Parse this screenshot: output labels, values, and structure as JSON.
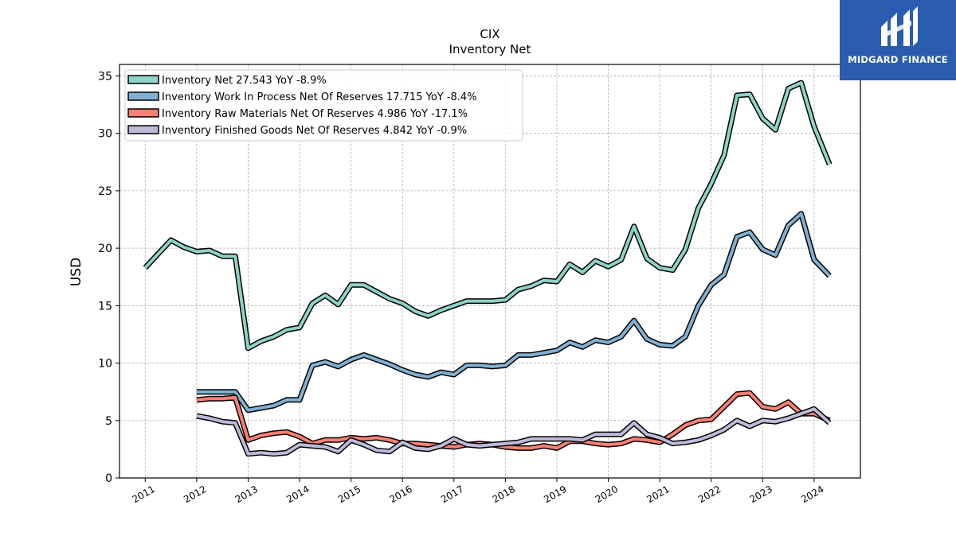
{
  "brand": {
    "name": "MIDGARD FINANCE",
    "bg_color": "#2a5cb0"
  },
  "chart_data": {
    "type": "line",
    "title": "CIX",
    "subtitle": "Inventory Net",
    "xlabel": "",
    "ylabel": "USD",
    "xlim": [
      2010.5,
      2024.9
    ],
    "ylim": [
      0,
      36
    ],
    "x_ticks": [
      "2011",
      "2012",
      "2013",
      "2014",
      "2015",
      "2016",
      "2017",
      "2018",
      "2019",
      "2020",
      "2021",
      "2022",
      "2023",
      "2024"
    ],
    "y_ticks": [
      0,
      5,
      10,
      15,
      20,
      25,
      30,
      35
    ],
    "grid": true,
    "legend_position": "top-left",
    "series": [
      {
        "name": "Inventory Net",
        "legend": "Inventory Net  27.543 YoY -8.9%",
        "color": "#8dd3c7",
        "points": [
          [
            2011.0,
            18.3
          ],
          [
            2011.25,
            19.5
          ],
          [
            2011.5,
            20.7
          ],
          [
            2011.75,
            20.1
          ],
          [
            2012.0,
            19.7
          ],
          [
            2012.25,
            19.8
          ],
          [
            2012.5,
            19.3
          ],
          [
            2012.75,
            19.3
          ],
          [
            2013.0,
            11.3
          ],
          [
            2013.25,
            11.9
          ],
          [
            2013.5,
            12.3
          ],
          [
            2013.75,
            12.9
          ],
          [
            2014.0,
            13.1
          ],
          [
            2014.25,
            15.2
          ],
          [
            2014.5,
            15.9
          ],
          [
            2014.75,
            15.1
          ],
          [
            2015.0,
            16.8
          ],
          [
            2015.25,
            16.8
          ],
          [
            2015.5,
            16.2
          ],
          [
            2015.75,
            15.6
          ],
          [
            2016.0,
            15.2
          ],
          [
            2016.25,
            14.5
          ],
          [
            2016.5,
            14.1
          ],
          [
            2016.75,
            14.6
          ],
          [
            2017.0,
            15.0
          ],
          [
            2017.25,
            15.4
          ],
          [
            2017.5,
            15.4
          ],
          [
            2017.75,
            15.4
          ],
          [
            2018.0,
            15.5
          ],
          [
            2018.25,
            16.4
          ],
          [
            2018.5,
            16.7
          ],
          [
            2018.75,
            17.2
          ],
          [
            2019.0,
            17.1
          ],
          [
            2019.25,
            18.6
          ],
          [
            2019.5,
            17.9
          ],
          [
            2019.75,
            18.9
          ],
          [
            2020.0,
            18.4
          ],
          [
            2020.25,
            19.0
          ],
          [
            2020.5,
            21.9
          ],
          [
            2020.75,
            19.1
          ],
          [
            2021.0,
            18.3
          ],
          [
            2021.25,
            18.1
          ],
          [
            2021.5,
            19.9
          ],
          [
            2021.75,
            23.5
          ],
          [
            2022.0,
            25.6
          ],
          [
            2022.25,
            28.1
          ],
          [
            2022.5,
            33.3
          ],
          [
            2022.75,
            33.4
          ],
          [
            2023.0,
            31.3
          ],
          [
            2023.25,
            30.3
          ],
          [
            2023.5,
            33.9
          ],
          [
            2023.75,
            34.4
          ],
          [
            2024.0,
            30.6
          ],
          [
            2024.3,
            27.3
          ]
        ]
      },
      {
        "name": "Inventory Work In Process Net Of Reserves",
        "legend": "Inventory Work In Process Net Of Reserves  17.715 YoY -8.4%",
        "color": "#80b1d3",
        "points": [
          [
            2012.0,
            7.5
          ],
          [
            2012.25,
            7.5
          ],
          [
            2012.5,
            7.5
          ],
          [
            2012.75,
            7.5
          ],
          [
            2013.0,
            5.9
          ],
          [
            2013.25,
            6.1
          ],
          [
            2013.5,
            6.3
          ],
          [
            2013.75,
            6.8
          ],
          [
            2014.0,
            6.8
          ],
          [
            2014.25,
            9.8
          ],
          [
            2014.5,
            10.1
          ],
          [
            2014.75,
            9.7
          ],
          [
            2015.0,
            10.3
          ],
          [
            2015.25,
            10.7
          ],
          [
            2015.5,
            10.3
          ],
          [
            2015.75,
            9.9
          ],
          [
            2016.0,
            9.4
          ],
          [
            2016.25,
            9.0
          ],
          [
            2016.5,
            8.8
          ],
          [
            2016.75,
            9.2
          ],
          [
            2017.0,
            9.0
          ],
          [
            2017.25,
            9.8
          ],
          [
            2017.5,
            9.8
          ],
          [
            2017.75,
            9.7
          ],
          [
            2018.0,
            9.8
          ],
          [
            2018.25,
            10.7
          ],
          [
            2018.5,
            10.7
          ],
          [
            2018.75,
            10.9
          ],
          [
            2019.0,
            11.1
          ],
          [
            2019.25,
            11.8
          ],
          [
            2019.5,
            11.4
          ],
          [
            2019.75,
            12.0
          ],
          [
            2020.0,
            11.8
          ],
          [
            2020.25,
            12.3
          ],
          [
            2020.5,
            13.7
          ],
          [
            2020.75,
            12.1
          ],
          [
            2021.0,
            11.6
          ],
          [
            2021.25,
            11.5
          ],
          [
            2021.5,
            12.3
          ],
          [
            2021.75,
            15.0
          ],
          [
            2022.0,
            16.8
          ],
          [
            2022.25,
            17.7
          ],
          [
            2022.5,
            21.0
          ],
          [
            2022.75,
            21.4
          ],
          [
            2023.0,
            19.9
          ],
          [
            2023.25,
            19.4
          ],
          [
            2023.5,
            22.0
          ],
          [
            2023.75,
            23.0
          ],
          [
            2024.0,
            19.0
          ],
          [
            2024.3,
            17.6
          ]
        ]
      },
      {
        "name": "Inventory Raw Materials Net Of Reserves",
        "legend": "Inventory Raw Materials Net Of Reserves  4.986 YoY -17.1%",
        "color": "#fb8072",
        "points": [
          [
            2012.0,
            6.8
          ],
          [
            2012.25,
            6.9
          ],
          [
            2012.5,
            6.9
          ],
          [
            2012.75,
            7.0
          ],
          [
            2013.0,
            3.3
          ],
          [
            2013.25,
            3.7
          ],
          [
            2013.5,
            3.9
          ],
          [
            2013.75,
            4.0
          ],
          [
            2014.0,
            3.6
          ],
          [
            2014.25,
            3.0
          ],
          [
            2014.5,
            3.3
          ],
          [
            2014.75,
            3.3
          ],
          [
            2015.0,
            3.5
          ],
          [
            2015.25,
            3.4
          ],
          [
            2015.5,
            3.5
          ],
          [
            2015.75,
            3.3
          ],
          [
            2016.0,
            3.0
          ],
          [
            2016.25,
            3.0
          ],
          [
            2016.5,
            2.9
          ],
          [
            2016.75,
            2.8
          ],
          [
            2017.0,
            2.7
          ],
          [
            2017.25,
            2.9
          ],
          [
            2017.5,
            3.0
          ],
          [
            2017.75,
            2.9
          ],
          [
            2018.0,
            2.7
          ],
          [
            2018.25,
            2.6
          ],
          [
            2018.5,
            2.6
          ],
          [
            2018.75,
            2.8
          ],
          [
            2019.0,
            2.6
          ],
          [
            2019.25,
            3.2
          ],
          [
            2019.5,
            3.2
          ],
          [
            2019.75,
            3.0
          ],
          [
            2020.0,
            2.9
          ],
          [
            2020.25,
            3.0
          ],
          [
            2020.5,
            3.4
          ],
          [
            2020.75,
            3.3
          ],
          [
            2021.0,
            3.1
          ],
          [
            2021.25,
            3.8
          ],
          [
            2021.5,
            4.6
          ],
          [
            2021.75,
            5.0
          ],
          [
            2022.0,
            5.1
          ],
          [
            2022.25,
            6.2
          ],
          [
            2022.5,
            7.3
          ],
          [
            2022.75,
            7.4
          ],
          [
            2023.0,
            6.2
          ],
          [
            2023.25,
            6.0
          ],
          [
            2023.5,
            6.6
          ],
          [
            2023.75,
            5.6
          ],
          [
            2024.0,
            5.6
          ],
          [
            2024.3,
            5.0
          ]
        ]
      },
      {
        "name": "Inventory Finished Goods Net Of Reserves",
        "legend": "Inventory Finished Goods Net Of Reserves  4.842 YoY -0.9%",
        "color": "#bebada",
        "points": [
          [
            2012.0,
            5.4
          ],
          [
            2012.25,
            5.2
          ],
          [
            2012.5,
            4.9
          ],
          [
            2012.75,
            4.8
          ],
          [
            2013.0,
            2.1
          ],
          [
            2013.25,
            2.2
          ],
          [
            2013.5,
            2.1
          ],
          [
            2013.75,
            2.2
          ],
          [
            2014.0,
            2.9
          ],
          [
            2014.25,
            2.8
          ],
          [
            2014.5,
            2.7
          ],
          [
            2014.75,
            2.3
          ],
          [
            2015.0,
            3.3
          ],
          [
            2015.25,
            2.9
          ],
          [
            2015.5,
            2.4
          ],
          [
            2015.75,
            2.3
          ],
          [
            2016.0,
            3.1
          ],
          [
            2016.25,
            2.6
          ],
          [
            2016.5,
            2.5
          ],
          [
            2016.75,
            2.8
          ],
          [
            2017.0,
            3.4
          ],
          [
            2017.25,
            2.9
          ],
          [
            2017.5,
            2.8
          ],
          [
            2017.75,
            2.9
          ],
          [
            2018.0,
            3.0
          ],
          [
            2018.25,
            3.1
          ],
          [
            2018.5,
            3.4
          ],
          [
            2018.75,
            3.4
          ],
          [
            2019.0,
            3.4
          ],
          [
            2019.25,
            3.4
          ],
          [
            2019.5,
            3.3
          ],
          [
            2019.75,
            3.8
          ],
          [
            2020.0,
            3.8
          ],
          [
            2020.25,
            3.8
          ],
          [
            2020.5,
            4.8
          ],
          [
            2020.75,
            3.8
          ],
          [
            2021.0,
            3.5
          ],
          [
            2021.25,
            3.0
          ],
          [
            2021.5,
            3.1
          ],
          [
            2021.75,
            3.3
          ],
          [
            2022.0,
            3.7
          ],
          [
            2022.25,
            4.2
          ],
          [
            2022.5,
            5.0
          ],
          [
            2022.75,
            4.5
          ],
          [
            2023.0,
            5.0
          ],
          [
            2023.25,
            4.9
          ],
          [
            2023.5,
            5.2
          ],
          [
            2023.75,
            5.6
          ],
          [
            2024.0,
            6.0
          ],
          [
            2024.3,
            4.8
          ]
        ]
      }
    ]
  }
}
